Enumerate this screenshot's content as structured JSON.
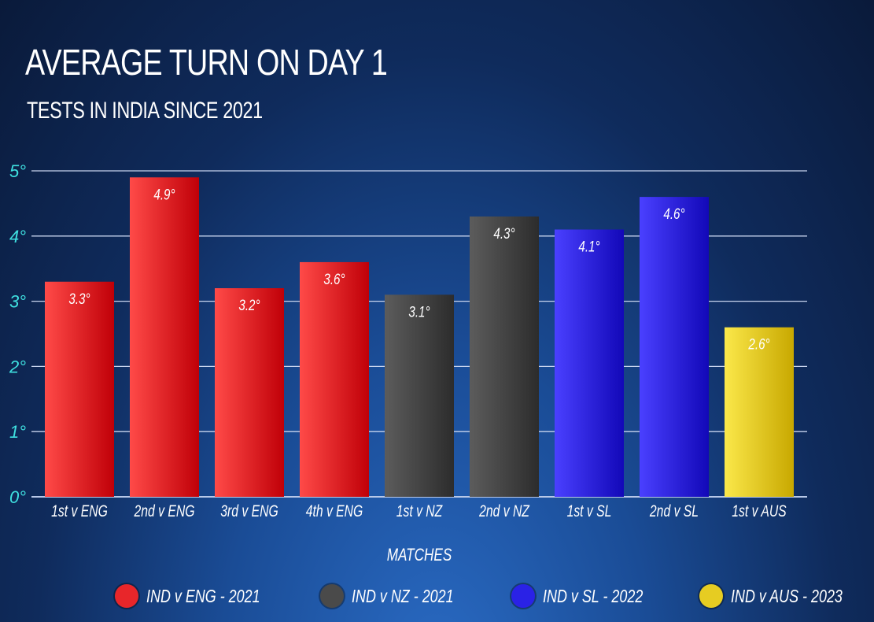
{
  "chart_data": {
    "type": "bar",
    "title": "AVERAGE TURN ON DAY 1",
    "subtitle": "TESTS IN INDIA SINCE 2021",
    "xlabel": "MATCHES",
    "ylabel": "",
    "ylim": [
      0,
      5
    ],
    "yticks": [
      "0°",
      "1°",
      "2°",
      "3°",
      "4°",
      "5°"
    ],
    "grid": true,
    "categories": [
      "1st v ENG",
      "2nd v ENG",
      "3rd v ENG",
      "4th v ENG",
      "1st v NZ",
      "2nd v NZ",
      "1st v SL",
      "2nd v SL",
      "1st v AUS"
    ],
    "values": [
      3.3,
      4.9,
      3.2,
      3.6,
      3.1,
      4.3,
      4.1,
      4.6,
      2.6
    ],
    "value_labels": [
      "3.3°",
      "4.9°",
      "3.2°",
      "3.6°",
      "3.1°",
      "4.3°",
      "4.1°",
      "4.6°",
      "2.6°"
    ],
    "series_index": [
      0,
      0,
      0,
      0,
      1,
      1,
      2,
      2,
      3
    ],
    "series": [
      {
        "name": "IND v ENG - 2021",
        "color": "#e8262a"
      },
      {
        "name": "IND v NZ - 2021",
        "color": "#4a4a4a"
      },
      {
        "name": "IND v SL - 2022",
        "color": "#2a22e6"
      },
      {
        "name": "IND v AUS - 2023",
        "color": "#e6cc22"
      }
    ],
    "legend_position": "bottom"
  }
}
